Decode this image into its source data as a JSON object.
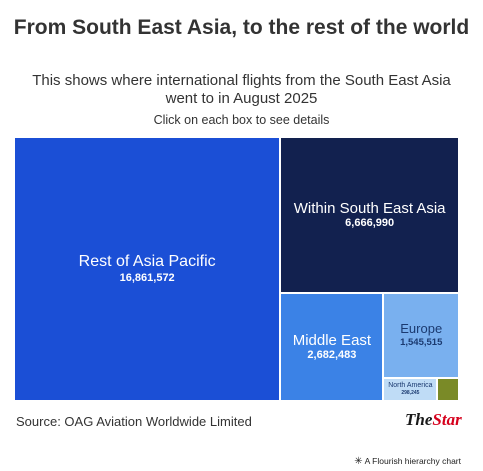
{
  "header": {
    "title": "From South East Asia, to the rest of the world",
    "subtitle": "This shows where international flights from the South East Asia went to in August 2025",
    "hint": "Click on each box to see details"
  },
  "footer": {
    "source": "Source: OAG Aviation Worldwide Limited",
    "logo_the": "The",
    "logo_star": "Star",
    "credit": "A Flourish hierarchy chart",
    "credit_icon": "flourish-asterisk-icon"
  },
  "chart_data": {
    "type": "treemap",
    "items": [
      {
        "name": "Rest of Asia Pacific",
        "value": 16861572,
        "label": "16,861,572",
        "color": "#1b4fd6",
        "text_color": "#ffffff"
      },
      {
        "name": "Within South East Asia",
        "value": 6666990,
        "label": "6,666,990",
        "color": "#12214f",
        "text_color": "#ffffff"
      },
      {
        "name": "Middle East",
        "value": 2682483,
        "label": "2,682,483",
        "color": "#3b82e6",
        "text_color": "#ffffff"
      },
      {
        "name": "Europe",
        "value": 1545515,
        "label": "1,545,515",
        "color": "#79b0ef",
        "text_color": "#1b3a70"
      },
      {
        "name": "North America",
        "value": 298245,
        "label": "298,245",
        "color": "#bfdcf6",
        "text_color": "#1b3a70"
      },
      {
        "name": "",
        "value": 120000,
        "label": "",
        "color": "#7a8a27",
        "text_color": "#ffffff"
      }
    ]
  }
}
